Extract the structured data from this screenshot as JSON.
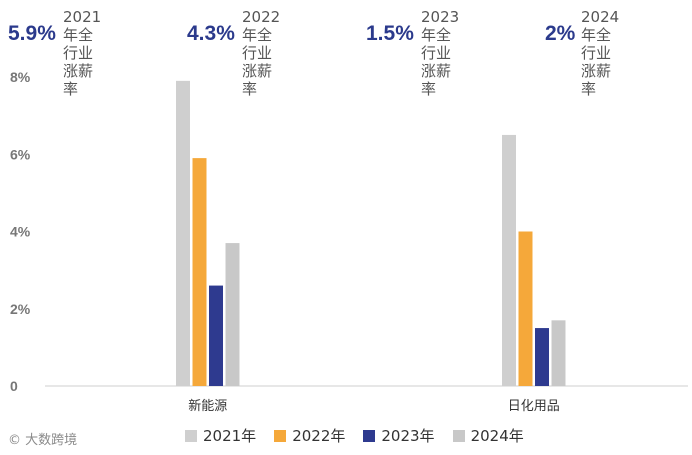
{
  "headers": [
    {
      "value": "5.9%",
      "label1": "2021年全行业",
      "label2": "涨薪率"
    },
    {
      "value": "4.3%",
      "label1": "2022年全行业",
      "label2": "涨薪率"
    },
    {
      "value": "1.5%",
      "label1": "2023年全行业",
      "label2": "涨薪率"
    },
    {
      "value": "2%",
      "label1": "2024年全行业",
      "label2": "涨薪率"
    }
  ],
  "watermark_source": "© 大数跨境",
  "colors": {
    "2021": "#cfcfcf",
    "2022": "#f5a83a",
    "2023": "#2e3a8f",
    "2024": "#c8c8c8"
  },
  "chart_data": {
    "type": "bar",
    "categories": [
      "新能源",
      "日化用品"
    ],
    "series": [
      {
        "name": "2021年",
        "values": [
          7.9,
          6.5
        ]
      },
      {
        "name": "2022年",
        "values": [
          5.9,
          4.0
        ]
      },
      {
        "name": "2023年",
        "values": [
          2.6,
          1.5
        ]
      },
      {
        "name": "2024年",
        "values": [
          3.7,
          1.7
        ]
      }
    ],
    "yticks": [
      "0",
      "2%",
      "4%",
      "6%",
      "8%"
    ],
    "ylim": [
      0,
      8
    ],
    "legend_position": "bottom",
    "grid": false
  }
}
